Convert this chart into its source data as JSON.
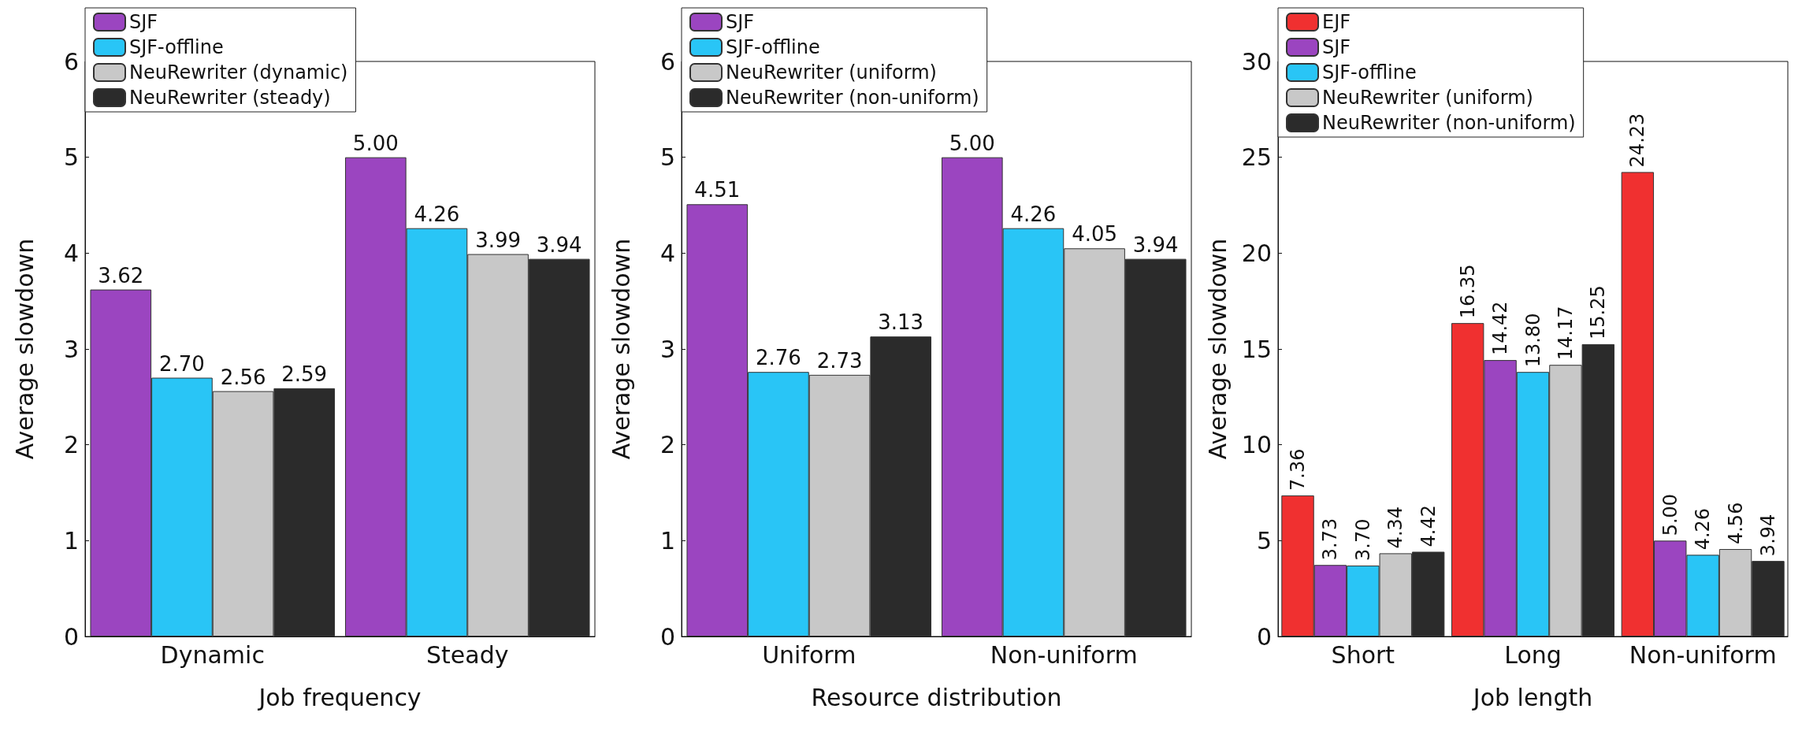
{
  "chart_data": [
    {
      "type": "bar",
      "xlabel": "Job frequency",
      "ylabel": "Average slowdown",
      "categories": [
        "Dynamic",
        "Steady"
      ],
      "ylim": [
        0,
        6
      ],
      "yticks": [
        0,
        1,
        2,
        3,
        4,
        5,
        6
      ],
      "legend": "top left",
      "grid": false,
      "series": [
        {
          "name": "SJF",
          "color": "#9b45c0",
          "values": [
            3.62,
            5.0
          ],
          "value_labels": [
            "3.62",
            "5.00"
          ]
        },
        {
          "name": "SJF-offline",
          "color": "#29c5f6",
          "values": [
            2.7,
            4.26
          ],
          "value_labels": [
            "2.70",
            "4.26"
          ]
        },
        {
          "name": "NeuRewriter (dynamic)",
          "color": "#c8c8c8",
          "values": [
            2.56,
            3.99
          ],
          "value_labels": [
            "2.56",
            "3.99"
          ]
        },
        {
          "name": "NeuRewriter (steady)",
          "color": "#2b2b2b",
          "values": [
            2.59,
            3.94
          ],
          "value_labels": [
            "2.59",
            "3.94"
          ]
        }
      ]
    },
    {
      "type": "bar",
      "xlabel": "Resource distribution",
      "ylabel": "Average slowdown",
      "categories": [
        "Uniform",
        "Non-uniform"
      ],
      "ylim": [
        0,
        6
      ],
      "yticks": [
        0,
        1,
        2,
        3,
        4,
        5,
        6
      ],
      "legend": "top left",
      "grid": false,
      "series": [
        {
          "name": "SJF",
          "color": "#9b45c0",
          "values": [
            4.51,
            5.0
          ],
          "value_labels": [
            "4.51",
            "5.00"
          ]
        },
        {
          "name": "SJF-offline",
          "color": "#29c5f6",
          "values": [
            2.76,
            4.26
          ],
          "value_labels": [
            "2.76",
            "4.26"
          ]
        },
        {
          "name": "NeuRewriter (uniform)",
          "color": "#c8c8c8",
          "values": [
            2.73,
            4.05
          ],
          "value_labels": [
            "2.73",
            "4.05"
          ]
        },
        {
          "name": "NeuRewriter (non-uniform)",
          "color": "#2b2b2b",
          "values": [
            3.13,
            3.94
          ],
          "value_labels": [
            "3.13",
            "3.94"
          ]
        }
      ]
    },
    {
      "type": "bar",
      "xlabel": "Job length",
      "ylabel": "Average slowdown",
      "categories": [
        "Short",
        "Long",
        "Non-uniform"
      ],
      "ylim": [
        0,
        30
      ],
      "yticks": [
        0,
        5,
        10,
        15,
        20,
        25,
        30
      ],
      "legend": "top left",
      "grid": false,
      "series": [
        {
          "name": "EJF",
          "color": "#f03030",
          "values": [
            7.36,
            16.35,
            24.23
          ],
          "value_labels": [
            "7.36",
            "16.35",
            "24.23"
          ]
        },
        {
          "name": "SJF",
          "color": "#9b45c0",
          "values": [
            3.73,
            14.42,
            5.0
          ],
          "value_labels": [
            "3.73",
            "14.42",
            "5.00"
          ]
        },
        {
          "name": "SJF-offline",
          "color": "#29c5f6",
          "values": [
            3.7,
            13.8,
            4.26
          ],
          "value_labels": [
            "3.70",
            "13.80",
            "4.26"
          ]
        },
        {
          "name": "NeuRewriter (uniform)",
          "color": "#c8c8c8",
          "values": [
            4.34,
            14.17,
            4.56
          ],
          "value_labels": [
            "4.34",
            "14.17",
            "4.56"
          ]
        },
        {
          "name": "NeuRewriter (non-uniform)",
          "color": "#2b2b2b",
          "values": [
            4.42,
            15.25,
            3.94
          ],
          "value_labels": [
            "4.42",
            "15.25",
            "3.94"
          ]
        }
      ]
    }
  ]
}
